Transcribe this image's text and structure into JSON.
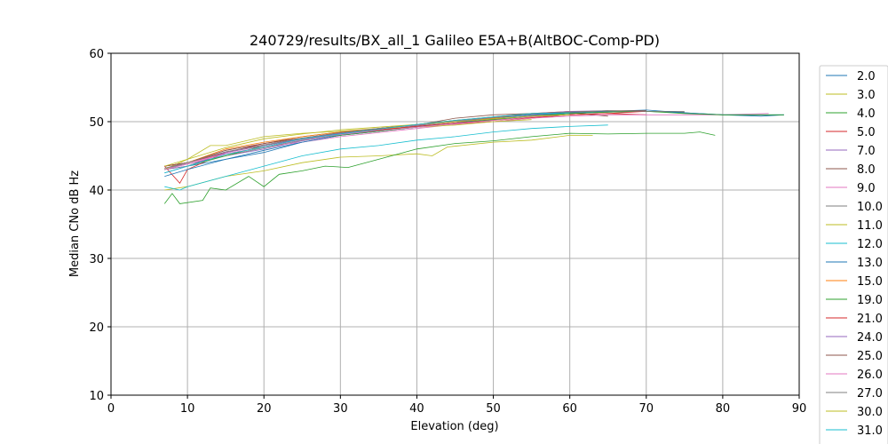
{
  "chart_data": {
    "type": "line",
    "title": "240729/results/BX_all_1 Galileo E5A+B(AltBOC-Comp-PD)",
    "xlabel": "Elevation (deg)",
    "ylabel": "Median CNo dB Hz",
    "xlim": [
      0,
      90
    ],
    "ylim": [
      10,
      60
    ],
    "xticks": [
      0,
      10,
      20,
      30,
      40,
      50,
      60,
      70,
      80,
      90
    ],
    "yticks": [
      10,
      20,
      30,
      40,
      50,
      60
    ],
    "grid": true,
    "legend_position": "right (outside plot, clipped at bottom)",
    "series": [
      {
        "name": "2.0",
        "color": "#1f77b4",
        "points": [
          [
            7,
            42.5
          ],
          [
            10,
            43.5
          ],
          [
            15,
            44.5
          ],
          [
            20,
            45.5
          ],
          [
            25,
            47
          ],
          [
            30,
            48
          ],
          [
            35,
            48.6
          ],
          [
            40,
            49.3
          ],
          [
            45,
            49.8
          ],
          [
            50,
            50.3
          ],
          [
            55,
            50.8
          ],
          [
            60,
            51.2
          ],
          [
            65,
            51.4
          ],
          [
            70,
            51.5
          ],
          [
            75,
            51.3
          ],
          [
            80,
            51
          ],
          [
            85,
            50.8
          ],
          [
            88,
            51
          ]
        ]
      },
      {
        "name": "3.0",
        "color": "#bcbd22",
        "points": [
          [
            7,
            40
          ],
          [
            10,
            40.5
          ],
          [
            15,
            42
          ],
          [
            20,
            42.8
          ],
          [
            25,
            44
          ],
          [
            30,
            44.8
          ],
          [
            35,
            45
          ],
          [
            40,
            45.3
          ],
          [
            42,
            45
          ],
          [
            44,
            46.3
          ],
          [
            50,
            47
          ],
          [
            55,
            47.3
          ],
          [
            60,
            48
          ],
          [
            63,
            48
          ]
        ]
      },
      {
        "name": "4.0",
        "color": "#2ca02c",
        "points": [
          [
            7,
            38
          ],
          [
            8,
            39.5
          ],
          [
            9,
            38
          ],
          [
            12,
            38.5
          ],
          [
            13,
            40.3
          ],
          [
            15,
            40
          ],
          [
            18,
            42
          ],
          [
            20,
            40.5
          ],
          [
            22,
            42.3
          ],
          [
            25,
            42.8
          ],
          [
            28,
            43.5
          ],
          [
            31,
            43.3
          ],
          [
            35,
            44.5
          ],
          [
            40,
            46
          ],
          [
            45,
            46.8
          ],
          [
            50,
            47.2
          ],
          [
            55,
            47.8
          ],
          [
            60,
            48.3
          ],
          [
            65,
            48.2
          ],
          [
            70,
            48.3
          ],
          [
            75,
            48.3
          ],
          [
            77,
            48.5
          ],
          [
            79,
            48
          ]
        ]
      },
      {
        "name": "5.0",
        "color": "#d62728",
        "points": [
          [
            7,
            43.5
          ],
          [
            9,
            41
          ],
          [
            10,
            43
          ],
          [
            15,
            45.5
          ],
          [
            20,
            46.5
          ],
          [
            25,
            47.5
          ],
          [
            30,
            48.3
          ],
          [
            35,
            48.7
          ],
          [
            40,
            49.3
          ],
          [
            45,
            49.7
          ],
          [
            50,
            50
          ],
          [
            55,
            50.5
          ],
          [
            60,
            51
          ],
          [
            65,
            51.2
          ],
          [
            70,
            51
          ]
        ]
      },
      {
        "name": "7.0",
        "color": "#9467bd",
        "points": [
          [
            7,
            43
          ],
          [
            10,
            43.8
          ],
          [
            15,
            45
          ],
          [
            20,
            46
          ],
          [
            25,
            47.2
          ],
          [
            30,
            48.1
          ],
          [
            35,
            48.6
          ],
          [
            40,
            49.2
          ],
          [
            45,
            49.8
          ],
          [
            50,
            50.3
          ],
          [
            55,
            50.9
          ],
          [
            60,
            51.2
          ],
          [
            65,
            51.4
          ]
        ]
      },
      {
        "name": "8.0",
        "color": "#8c564b",
        "points": [
          [
            7,
            43.5
          ],
          [
            10,
            44
          ],
          [
            15,
            45.8
          ],
          [
            20,
            46.8
          ],
          [
            25,
            47.8
          ],
          [
            30,
            48.5
          ],
          [
            35,
            49
          ],
          [
            40,
            49.5
          ],
          [
            45,
            50.5
          ],
          [
            50,
            51
          ],
          [
            55,
            51.2
          ],
          [
            60,
            51.3
          ],
          [
            65,
            50.8
          ]
        ]
      },
      {
        "name": "9.0",
        "color": "#e377c2",
        "points": [
          [
            7,
            43
          ],
          [
            10,
            44
          ],
          [
            15,
            45.3
          ],
          [
            20,
            46.3
          ],
          [
            25,
            47
          ],
          [
            30,
            47.8
          ],
          [
            35,
            48.4
          ],
          [
            40,
            49
          ],
          [
            45,
            49.6
          ],
          [
            50,
            50
          ],
          [
            55,
            50.5
          ],
          [
            60,
            50.8
          ],
          [
            65,
            51
          ],
          [
            70,
            51
          ],
          [
            75,
            51
          ],
          [
            80,
            51
          ],
          [
            86,
            51.2
          ]
        ]
      },
      {
        "name": "10.0",
        "color": "#7f7f7f",
        "points": [
          [
            7,
            43.2
          ],
          [
            10,
            43.8
          ],
          [
            15,
            45
          ],
          [
            20,
            46.2
          ],
          [
            25,
            47.3
          ],
          [
            30,
            48.2
          ],
          [
            35,
            48.8
          ],
          [
            40,
            49.4
          ],
          [
            45,
            50
          ],
          [
            50,
            50.4
          ],
          [
            55,
            50.8
          ],
          [
            60,
            51.2
          ],
          [
            65,
            51.4
          ],
          [
            70,
            51.5
          ],
          [
            75,
            51.4
          ]
        ]
      },
      {
        "name": "11.0",
        "color": "#bcbd22",
        "points": [
          [
            7,
            43
          ],
          [
            10,
            44.5
          ],
          [
            13,
            46.5
          ],
          [
            15,
            46.5
          ],
          [
            20,
            47.8
          ],
          [
            25,
            48.3
          ],
          [
            30,
            48.6
          ],
          [
            35,
            49
          ],
          [
            40,
            49.2
          ],
          [
            45,
            49.5
          ],
          [
            50,
            50
          ],
          [
            55,
            50.3
          ]
        ]
      },
      {
        "name": "12.0",
        "color": "#17becf",
        "points": [
          [
            7,
            40.5
          ],
          [
            9,
            40
          ],
          [
            10,
            40.5
          ],
          [
            15,
            42
          ],
          [
            20,
            43.5
          ],
          [
            25,
            45
          ],
          [
            30,
            46
          ],
          [
            35,
            46.5
          ],
          [
            40,
            47.3
          ],
          [
            45,
            47.8
          ],
          [
            50,
            48.5
          ],
          [
            55,
            49
          ],
          [
            60,
            49.3
          ],
          [
            65,
            49.5
          ]
        ]
      },
      {
        "name": "13.0",
        "color": "#1f77b4",
        "points": [
          [
            7,
            42
          ],
          [
            10,
            43
          ],
          [
            15,
            44.5
          ],
          [
            20,
            45.8
          ],
          [
            25,
            47
          ],
          [
            30,
            48
          ],
          [
            35,
            48.6
          ],
          [
            40,
            49.2
          ],
          [
            45,
            49.8
          ],
          [
            50,
            50.5
          ],
          [
            55,
            51
          ],
          [
            60,
            51.3
          ],
          [
            65,
            51.5
          ],
          [
            70,
            51.7
          ],
          [
            75,
            51.3
          ],
          [
            80,
            51
          ],
          [
            85,
            51
          ],
          [
            88,
            51
          ]
        ]
      },
      {
        "name": "15.0",
        "color": "#ff7f0e",
        "points": [
          [
            7,
            43.5
          ],
          [
            10,
            44
          ],
          [
            15,
            46
          ],
          [
            20,
            47
          ],
          [
            25,
            47.8
          ],
          [
            30,
            48.5
          ],
          [
            35,
            49
          ],
          [
            40,
            49.5
          ],
          [
            45,
            50
          ],
          [
            50,
            50.5
          ],
          [
            55,
            51.2
          ],
          [
            60,
            51.5
          ]
        ]
      },
      {
        "name": "19.0",
        "color": "#2ca02c",
        "points": [
          [
            7,
            43
          ],
          [
            10,
            43.5
          ],
          [
            15,
            45
          ],
          [
            20,
            46.5
          ],
          [
            25,
            47.5
          ],
          [
            30,
            48
          ],
          [
            35,
            48.6
          ],
          [
            40,
            49.2
          ],
          [
            45,
            49.8
          ],
          [
            50,
            50.3
          ],
          [
            55,
            50.8
          ],
          [
            60,
            51.2
          ],
          [
            65,
            51.4
          ],
          [
            70,
            51.5
          ],
          [
            75,
            51.2
          ],
          [
            80,
            51
          ],
          [
            85,
            51
          ],
          [
            88,
            51
          ]
        ]
      },
      {
        "name": "21.0",
        "color": "#d62728",
        "points": [
          [
            7,
            43.5
          ],
          [
            10,
            44
          ],
          [
            15,
            45.5
          ],
          [
            20,
            46.8
          ],
          [
            25,
            47.6
          ],
          [
            30,
            48.3
          ],
          [
            35,
            48.8
          ],
          [
            40,
            49.3
          ],
          [
            45,
            49.8
          ],
          [
            50,
            50.2
          ],
          [
            55,
            50.6
          ],
          [
            60,
            51
          ],
          [
            65,
            51.2
          ],
          [
            70,
            51.5
          ]
        ]
      },
      {
        "name": "24.0",
        "color": "#9467bd",
        "points": [
          [
            7,
            43
          ],
          [
            10,
            43.5
          ],
          [
            15,
            45.5
          ],
          [
            20,
            46.5
          ],
          [
            25,
            47.5
          ],
          [
            30,
            48.3
          ],
          [
            35,
            49
          ],
          [
            40,
            49.5
          ],
          [
            45,
            50
          ],
          [
            50,
            50.6
          ],
          [
            55,
            51.2
          ],
          [
            60,
            51.5
          ],
          [
            65,
            51.6
          ]
        ]
      },
      {
        "name": "25.0",
        "color": "#8c564b",
        "points": [
          [
            7,
            43.5
          ],
          [
            10,
            44
          ],
          [
            15,
            45.8
          ],
          [
            20,
            46.8
          ],
          [
            25,
            47.6
          ],
          [
            30,
            48.4
          ],
          [
            35,
            49
          ],
          [
            40,
            49.6
          ],
          [
            45,
            50.2
          ],
          [
            50,
            50.7
          ],
          [
            55,
            51.2
          ],
          [
            60,
            51.4
          ],
          [
            65,
            51.6
          ],
          [
            70,
            51.6
          ]
        ]
      },
      {
        "name": "26.0",
        "color": "#e377c2",
        "points": [
          [
            7,
            43
          ],
          [
            10,
            43.8
          ],
          [
            15,
            45.3
          ],
          [
            20,
            46.3
          ],
          [
            25,
            47.4
          ],
          [
            30,
            48.1
          ],
          [
            35,
            48.7
          ],
          [
            40,
            49.2
          ],
          [
            45,
            49.7
          ],
          [
            50,
            50.2
          ],
          [
            55,
            50.7
          ],
          [
            60,
            51
          ]
        ]
      },
      {
        "name": "27.0",
        "color": "#7f7f7f",
        "points": [
          [
            7,
            43.2
          ],
          [
            10,
            44
          ],
          [
            15,
            45.6
          ],
          [
            20,
            46.6
          ],
          [
            25,
            47.6
          ],
          [
            30,
            48.4
          ],
          [
            35,
            49
          ],
          [
            40,
            49.6
          ],
          [
            45,
            50.1
          ],
          [
            50,
            50.6
          ],
          [
            55,
            51.1
          ],
          [
            60,
            51.4
          ],
          [
            65,
            51.6
          ],
          [
            70,
            51.5
          ],
          [
            75,
            51.5
          ]
        ]
      },
      {
        "name": "30.0",
        "color": "#bcbd22",
        "points": [
          [
            7,
            43.5
          ],
          [
            10,
            44.5
          ],
          [
            15,
            46.2
          ],
          [
            20,
            47.5
          ],
          [
            25,
            48.2
          ],
          [
            30,
            48.8
          ],
          [
            35,
            49.2
          ],
          [
            40,
            49.6
          ],
          [
            45,
            50
          ],
          [
            50,
            50.4
          ],
          [
            55,
            50.8
          ],
          [
            60,
            51
          ]
        ]
      },
      {
        "name": "31.0",
        "color": "#17becf",
        "points": [
          [
            7,
            42.5
          ],
          [
            10,
            43.5
          ],
          [
            15,
            45.2
          ],
          [
            20,
            46.3
          ],
          [
            25,
            47.5
          ],
          [
            30,
            48.2
          ],
          [
            35,
            48.9
          ],
          [
            40,
            49.6
          ],
          [
            45,
            50.2
          ],
          [
            50,
            50.7
          ],
          [
            55,
            51.2
          ],
          [
            60,
            51.3
          ]
        ]
      }
    ]
  }
}
